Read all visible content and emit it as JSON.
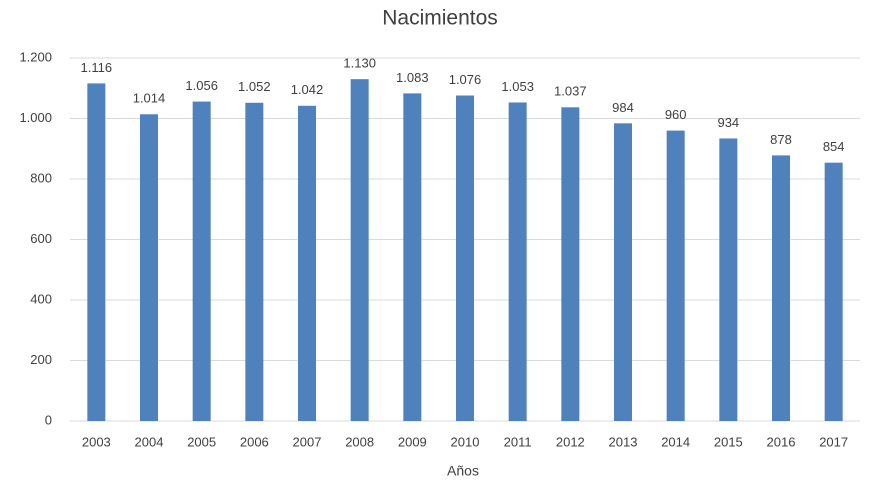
{
  "chart_data": {
    "type": "bar",
    "title": "Nacimientos",
    "x_label": "Años",
    "categories": [
      "2003",
      "2004",
      "2005",
      "2006",
      "2007",
      "2008",
      "2009",
      "2010",
      "2011",
      "2012",
      "2013",
      "2014",
      "2015",
      "2016",
      "2017"
    ],
    "values": [
      1116,
      1014,
      1056,
      1052,
      1042,
      1130,
      1083,
      1076,
      1053,
      1037,
      984,
      960,
      934,
      878,
      854
    ],
    "value_labels": [
      "1.116",
      "1.014",
      "1.056",
      "1.052",
      "1.042",
      "1.130",
      "1.083",
      "1.076",
      "1.053",
      "1.037",
      "984",
      "960",
      "934",
      "878",
      "854"
    ],
    "color": "#4f81bd",
    "ylim": [
      0,
      1200
    ],
    "yticks": [
      0,
      200,
      400,
      600,
      800,
      {
        "value": 1000,
        "label": "1.000"
      },
      {
        "value": 1200,
        "label": "1.200"
      }
    ],
    "grid": true
  }
}
